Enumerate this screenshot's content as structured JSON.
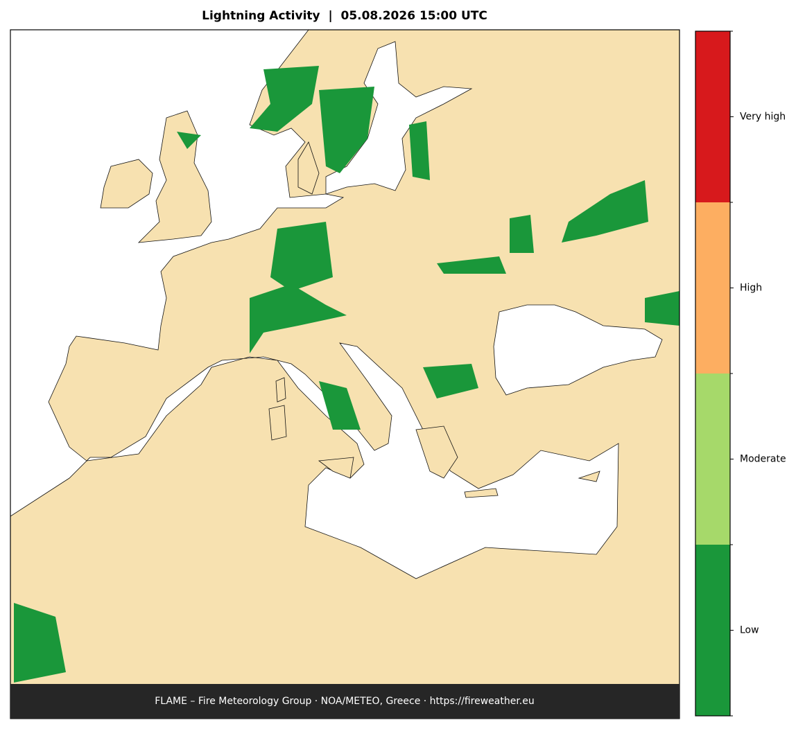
{
  "header": {
    "title": "Lightning Activity  |  05.08.2026 15:00 UTC"
  },
  "footer": {
    "text": "FLAME – Fire Meteorology Group · NOA/METEO, Greece · https://fireweather.eu"
  },
  "legend": {
    "levels": [
      {
        "label": "Low",
        "color": "#1a973a"
      },
      {
        "label": "Moderate",
        "color": "#a6d96a"
      },
      {
        "label": "High",
        "color": "#fdae61"
      },
      {
        "label": "Very high",
        "color": "#d7191c"
      }
    ]
  }
}
